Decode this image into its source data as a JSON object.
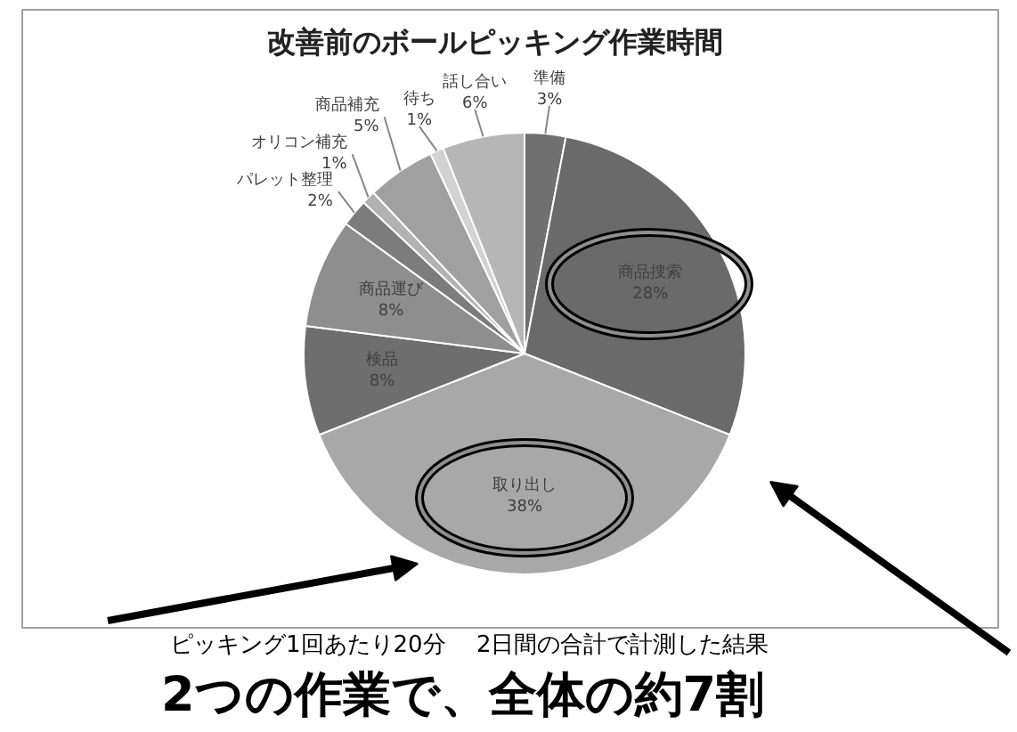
{
  "chart_data": {
    "type": "pie",
    "title": "改善前のボールピッキング作業時間",
    "categories": [
      "準備",
      "商品捜索",
      "取り出し",
      "検品",
      "商品運び",
      "パレット整理",
      "オリコン補充",
      "商品補充",
      "待ち",
      "話し合い"
    ],
    "values": [
      3,
      28,
      38,
      8,
      8,
      2,
      1,
      5,
      1,
      6
    ],
    "value_labels": [
      "3%",
      "28%",
      "38%",
      "8%",
      "8%",
      "2%",
      "1%",
      "5%",
      "1%",
      "6%"
    ],
    "colors": [
      "#707070",
      "#6a6a6a",
      "#a8a8a8",
      "#6e6e6e",
      "#8e8e8e",
      "#7c7c7c",
      "#b2b2b2",
      "#a0a0a0",
      "#d2d2d2",
      "#b6b6b6"
    ],
    "annotations": [
      "ピッキング1回あたり20分　 2日間の合計で計測した結果",
      "2つの作業で、全体の約7割"
    ]
  }
}
